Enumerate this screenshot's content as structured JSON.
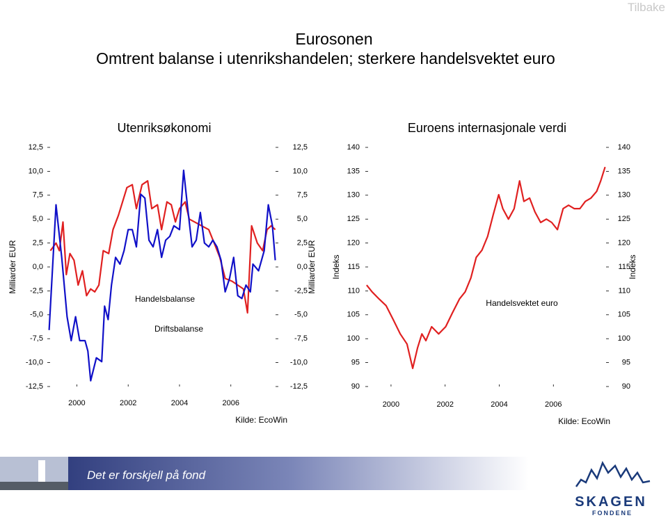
{
  "button": "Tilbake",
  "header": {
    "title": "Eurosonen",
    "subtitle": "Omtrent balanse i utenrikshandelen; sterkere handelsvektet euro"
  },
  "footer": {
    "slogan": "Det er forskjell på fond",
    "brand": "SKAGEN",
    "brand_sub": "FONDENE"
  },
  "chart_data": [
    {
      "type": "line",
      "title": "Utenriksøkonomi",
      "ylabel": "Milliarder EUR",
      "source": "Kilde: EcoWin",
      "xlim": [
        1998.85,
        2007.85
      ],
      "xticks": [
        2000,
        2002,
        2004,
        2006
      ],
      "ylim": [
        -12.5,
        12.5
      ],
      "yticks": [
        {
          "value": -12.5,
          "label": "-12,5"
        },
        {
          "value": -10,
          "label": "-10,0"
        },
        {
          "value": -7.5,
          "label": "-7,5"
        },
        {
          "value": -5,
          "label": "-5,0"
        },
        {
          "value": -2.5,
          "label": "-2,5"
        },
        {
          "value": 0,
          "label": "0,0"
        },
        {
          "value": 2.5,
          "label": "2,5"
        },
        {
          "value": 5,
          "label": "5,0"
        },
        {
          "value": 7.5,
          "label": "7,5"
        },
        {
          "value": 10,
          "label": "10,0"
        },
        {
          "value": 12.5,
          "label": "12,5"
        }
      ],
      "series": [
        {
          "name": "Handelsbalanse",
          "color": "#e02020",
          "x": [
            1998.97,
            1999.19,
            1999.32,
            1999.46,
            1999.59,
            1999.73,
            1999.89,
            2000.05,
            2000.22,
            2000.38,
            2000.54,
            2000.7,
            2000.86,
            2001.03,
            2001.24,
            2001.41,
            2001.62,
            2001.78,
            2001.95,
            2002.16,
            2002.32,
            2002.54,
            2002.76,
            2002.92,
            2003.14,
            2003.3,
            2003.51,
            2003.68,
            2003.84,
            2004.0,
            2004.22,
            2004.38,
            2004.59,
            2004.86,
            2005.14,
            2005.35,
            2005.57,
            2005.78,
            2006.05,
            2006.27,
            2006.49,
            2006.65,
            2006.81,
            2007.03,
            2007.24,
            2007.41,
            2007.57,
            2007.73
          ],
          "values": [
            1.7,
            2.5,
            1.7,
            4.7,
            -0.8,
            1.4,
            0.7,
            -1.9,
            -0.4,
            -3.0,
            -2.3,
            -2.6,
            -1.9,
            1.7,
            1.4,
            3.9,
            5.4,
            6.8,
            8.3,
            8.6,
            6.1,
            8.6,
            9.0,
            6.1,
            6.5,
            3.9,
            6.8,
            6.5,
            4.7,
            6.1,
            6.8,
            5.0,
            4.7,
            4.3,
            3.9,
            2.5,
            1.0,
            -1.2,
            -1.5,
            -1.9,
            -2.3,
            -4.8,
            4.3,
            2.5,
            1.7,
            3.9,
            4.3,
            3.9
          ]
        },
        {
          "name": "Driftsbalanse",
          "color": "#1010c8",
          "x": [
            1998.92,
            1999.19,
            1999.41,
            1999.62,
            1999.78,
            1999.95,
            2000.11,
            2000.32,
            2000.43,
            2000.54,
            2000.76,
            2000.97,
            2001.08,
            2001.22,
            2001.35,
            2001.51,
            2001.68,
            2001.84,
            2002.0,
            2002.16,
            2002.32,
            2002.49,
            2002.65,
            2002.81,
            2002.97,
            2003.14,
            2003.3,
            2003.46,
            2003.62,
            2003.78,
            2004.0,
            2004.16,
            2004.32,
            2004.49,
            2004.65,
            2004.81,
            2004.97,
            2005.14,
            2005.3,
            2005.46,
            2005.62,
            2005.78,
            2005.95,
            2006.11,
            2006.27,
            2006.43,
            2006.59,
            2006.76,
            2006.86,
            2007.08,
            2007.3,
            2007.46,
            2007.62,
            2007.73
          ],
          "values": [
            -6.6,
            6.5,
            1.0,
            -5.2,
            -7.7,
            -5.2,
            -7.7,
            -7.7,
            -8.8,
            -11.9,
            -9.5,
            -9.9,
            -4.1,
            -5.5,
            -1.9,
            1.0,
            0.3,
            1.7,
            3.9,
            3.9,
            2.1,
            7.6,
            7.2,
            2.8,
            2.1,
            3.9,
            1.0,
            2.8,
            3.2,
            4.3,
            3.9,
            10.1,
            6.1,
            2.1,
            2.8,
            5.7,
            2.5,
            2.1,
            2.8,
            2.1,
            0.7,
            -2.6,
            -1.2,
            1.0,
            -3.0,
            -3.3,
            -1.9,
            -2.6,
            0.3,
            -0.4,
            1.7,
            6.5,
            4.3,
            0.7
          ]
        }
      ]
    },
    {
      "type": "line",
      "title": "Euroens internasjonale verdi",
      "ylabel": "Indeks",
      "source": "Kilde: EcoWin",
      "xlim": [
        1999.05,
        2008.05
      ],
      "xticks": [
        2000,
        2002,
        2004,
        2006
      ],
      "ylim": [
        90,
        140
      ],
      "yticks": [
        90,
        95,
        100,
        105,
        110,
        115,
        120,
        125,
        130,
        135,
        140
      ],
      "series": [
        {
          "name": "Handelsvektet euro",
          "color": "#e02020",
          "x": [
            1999.1,
            1999.3,
            1999.56,
            1999.82,
            2000.08,
            2000.34,
            2000.59,
            2000.8,
            2000.98,
            2001.14,
            2001.29,
            2001.5,
            2001.76,
            2002.02,
            2002.27,
            2002.53,
            2002.74,
            2002.95,
            2003.15,
            2003.36,
            2003.57,
            2003.77,
            2003.98,
            2004.13,
            2004.34,
            2004.55,
            2004.75,
            2004.91,
            2005.12,
            2005.32,
            2005.53,
            2005.74,
            2005.94,
            2006.15,
            2006.36,
            2006.56,
            2006.77,
            2006.98,
            2007.18,
            2007.39,
            2007.6,
            2007.75,
            2007.91
          ],
          "values": [
            111.2,
            109.8,
            108.3,
            106.9,
            104.0,
            101.0,
            98.9,
            93.8,
            98.1,
            101.0,
            99.6,
            102.5,
            101.0,
            102.5,
            105.4,
            108.3,
            109.8,
            112.7,
            117.0,
            118.5,
            121.4,
            125.8,
            130.1,
            127.2,
            125.0,
            127.2,
            133.0,
            128.7,
            129.4,
            126.5,
            124.3,
            125.0,
            124.3,
            122.8,
            127.2,
            127.9,
            127.2,
            127.2,
            128.7,
            129.4,
            130.8,
            133.0,
            135.9
          ]
        }
      ]
    }
  ]
}
